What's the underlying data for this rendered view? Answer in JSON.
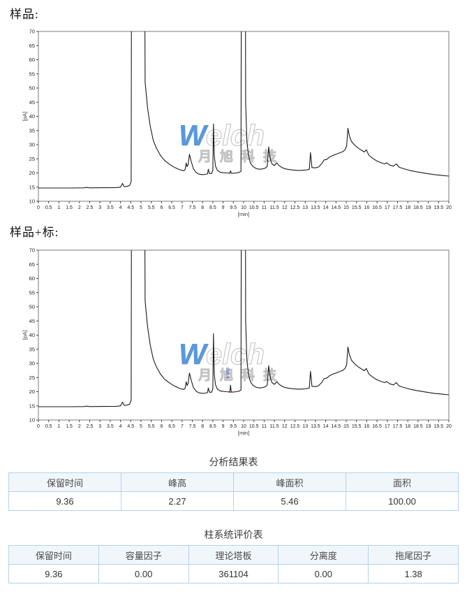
{
  "page": {
    "section1_label": "样品:",
    "section2_label": "样品+标:"
  },
  "watermark": {
    "word_head": "W",
    "word_tail": "elch",
    "sub": "月旭科技",
    "head_color": "#4a8fd4",
    "outline_color": "#bdbdbd"
  },
  "tables": [
    {
      "title": "分析结果表",
      "headers": [
        "保留时间",
        "峰高",
        "峰面积",
        "面积"
      ],
      "rows": [
        [
          "9.36",
          "2.27",
          "5.46",
          "100.00"
        ]
      ]
    },
    {
      "title": "柱系统评价表",
      "headers": [
        "保留时间",
        "容量因子",
        "理论塔板",
        "分离度",
        "拖尾因子"
      ],
      "rows": [
        [
          "9.36",
          "0.00",
          "361104",
          "0.00",
          "1.38"
        ]
      ]
    }
  ],
  "chart_data": [
    {
      "type": "line",
      "name": "sample-chromatogram",
      "title": "样品:",
      "xlabel": "[min]",
      "ylabel": "[pA]",
      "xlim": [
        0,
        20
      ],
      "ylim": [
        10,
        70
      ],
      "grid": false,
      "line_color": "#1a1a1a",
      "x_ticks": [
        "0",
        "0.5",
        "1",
        "1.5",
        "2",
        "2.5",
        "3",
        "3.5",
        "4",
        "4.5",
        "5",
        "5.5",
        "6",
        "6.5",
        "7",
        "7.5",
        "8",
        "8.5",
        "9",
        "9.5",
        "10",
        "10.5",
        "11",
        "11.5",
        "12",
        "12.5",
        "13",
        "13.5",
        "14",
        "14.5",
        "15",
        "15.5",
        "16",
        "16.5",
        "17",
        "17.5",
        "18",
        "18.5",
        "19",
        "19.5",
        "20"
      ],
      "y_ticks": [
        "70",
        "65",
        "60",
        "55",
        "50",
        "45",
        "40",
        "35",
        "30",
        "25",
        "20",
        "15",
        "10"
      ],
      "points": [
        [
          0,
          14.7
        ],
        [
          0.8,
          14.7
        ],
        [
          1.6,
          14.7
        ],
        [
          2.2,
          14.75
        ],
        [
          2.35,
          14.9
        ],
        [
          2.5,
          14.75
        ],
        [
          3.2,
          14.8
        ],
        [
          3.8,
          14.85
        ],
        [
          4.0,
          15.0
        ],
        [
          4.1,
          16.3
        ],
        [
          4.18,
          15.2
        ],
        [
          4.3,
          15.2
        ],
        [
          4.45,
          15.6
        ],
        [
          4.52,
          17
        ],
        [
          4.56,
          200
        ],
        [
          5.12,
          200
        ],
        [
          5.2,
          52
        ],
        [
          5.32,
          43
        ],
        [
          5.45,
          36.5
        ],
        [
          5.6,
          31.5
        ],
        [
          5.75,
          28.8
        ],
        [
          5.95,
          26.2
        ],
        [
          6.15,
          24.4
        ],
        [
          6.4,
          23.0
        ],
        [
          6.65,
          21.9
        ],
        [
          6.9,
          21.1
        ],
        [
          7.08,
          20.8
        ],
        [
          7.15,
          21.2
        ],
        [
          7.2,
          23.5
        ],
        [
          7.25,
          22.2
        ],
        [
          7.3,
          23.0
        ],
        [
          7.36,
          26.6
        ],
        [
          7.44,
          24.3
        ],
        [
          7.55,
          21.5
        ],
        [
          7.68,
          20.2
        ],
        [
          7.82,
          19.6
        ],
        [
          8.0,
          19.4
        ],
        [
          8.15,
          19.5
        ],
        [
          8.24,
          19.7
        ],
        [
          8.28,
          21.3
        ],
        [
          8.34,
          19.8
        ],
        [
          8.44,
          19.8
        ],
        [
          8.5,
          21
        ],
        [
          8.53,
          37.3
        ],
        [
          8.57,
          26
        ],
        [
          8.63,
          22.5
        ],
        [
          8.72,
          20.9
        ],
        [
          8.85,
          20.3
        ],
        [
          9.0,
          20.1
        ],
        [
          9.15,
          20.0
        ],
        [
          9.28,
          19.95
        ],
        [
          9.33,
          19.9
        ],
        [
          9.36,
          20.8
        ],
        [
          9.4,
          19.9
        ],
        [
          9.5,
          19.9
        ],
        [
          9.65,
          20.0
        ],
        [
          9.78,
          20.2
        ],
        [
          9.87,
          20.6
        ],
        [
          9.92,
          200
        ],
        [
          10.06,
          200
        ],
        [
          10.1,
          45
        ],
        [
          10.16,
          31
        ],
        [
          10.24,
          26
        ],
        [
          10.33,
          23.5
        ],
        [
          10.45,
          22.3
        ],
        [
          10.6,
          21.6
        ],
        [
          10.75,
          21.3
        ],
        [
          10.9,
          21.4
        ],
        [
          11.05,
          21.7
        ],
        [
          11.15,
          22.3
        ],
        [
          11.22,
          29.2
        ],
        [
          11.3,
          25
        ],
        [
          11.38,
          23.2
        ],
        [
          11.5,
          22.6
        ],
        [
          11.62,
          23.6
        ],
        [
          11.7,
          22.8
        ],
        [
          11.85,
          22.0
        ],
        [
          12.0,
          21.5
        ],
        [
          12.2,
          21.2
        ],
        [
          12.45,
          21.0
        ],
        [
          12.7,
          20.9
        ],
        [
          12.95,
          21.0
        ],
        [
          13.1,
          21.1
        ],
        [
          13.2,
          21.3
        ],
        [
          13.26,
          27.2
        ],
        [
          13.33,
          21.9
        ],
        [
          13.5,
          21.8
        ],
        [
          13.65,
          22.1
        ],
        [
          13.8,
          23.2
        ],
        [
          13.92,
          24.6
        ],
        [
          14.05,
          24.8
        ],
        [
          14.18,
          25.6
        ],
        [
          14.35,
          26.2
        ],
        [
          14.5,
          26.6
        ],
        [
          14.68,
          27.1
        ],
        [
          14.85,
          27.6
        ],
        [
          14.95,
          28.3
        ],
        [
          15.02,
          29.5
        ],
        [
          15.08,
          35.8
        ],
        [
          15.15,
          33.2
        ],
        [
          15.25,
          31.2
        ],
        [
          15.4,
          29.9
        ],
        [
          15.58,
          28.8
        ],
        [
          15.75,
          28.0
        ],
        [
          15.88,
          27.4
        ],
        [
          15.98,
          28.2
        ],
        [
          16.1,
          26.3
        ],
        [
          16.3,
          25.1
        ],
        [
          16.5,
          24.2
        ],
        [
          16.7,
          23.6
        ],
        [
          16.88,
          23.2
        ],
        [
          16.97,
          23.6
        ],
        [
          17.12,
          22.8
        ],
        [
          17.3,
          22.4
        ],
        [
          17.44,
          23.2
        ],
        [
          17.58,
          22.0
        ],
        [
          17.8,
          21.5
        ],
        [
          18.1,
          20.9
        ],
        [
          18.45,
          20.4
        ],
        [
          18.85,
          19.9
        ],
        [
          19.3,
          19.4
        ],
        [
          19.7,
          19.1
        ],
        [
          20,
          18.9
        ]
      ]
    },
    {
      "type": "line",
      "name": "sample-plus-standard-chromatogram",
      "title": "样品+标:",
      "xlabel": "[min]",
      "ylabel": "[pA]",
      "xlim": [
        0,
        20
      ],
      "ylim": [
        10,
        70
      ],
      "grid": false,
      "line_color": "#1a1a1a",
      "x_ticks": [
        "0",
        "0.5",
        "1",
        "1.5",
        "2",
        "2.5",
        "3",
        "3.5",
        "4",
        "4.5",
        "5",
        "5.5",
        "6",
        "6.5",
        "7",
        "7.5",
        "8",
        "8.5",
        "9",
        "9.5",
        "10",
        "10.5",
        "11",
        "11.5",
        "12",
        "12.5",
        "13",
        "13.5",
        "14",
        "14.5",
        "15",
        "15.5",
        "16",
        "16.5",
        "17",
        "17.5",
        "18",
        "18.5",
        "19",
        "19.5",
        "20"
      ],
      "y_ticks": [
        "70",
        "65",
        "60",
        "55",
        "50",
        "45",
        "40",
        "35",
        "30",
        "25",
        "20",
        "15",
        "10"
      ],
      "peak_label": {
        "text": "9.363",
        "x": 9.3,
        "y": 24.5,
        "color": "#4343c8"
      },
      "baseline_marker": {
        "x1": 9.26,
        "x2": 9.48,
        "y": 19.8,
        "color": "#b5502d"
      },
      "points": [
        [
          0,
          14.7
        ],
        [
          0.8,
          14.7
        ],
        [
          1.6,
          14.7
        ],
        [
          2.2,
          14.75
        ],
        [
          2.35,
          14.9
        ],
        [
          2.5,
          14.75
        ],
        [
          3.2,
          14.8
        ],
        [
          3.8,
          14.85
        ],
        [
          4.0,
          15.0
        ],
        [
          4.1,
          16.3
        ],
        [
          4.18,
          15.2
        ],
        [
          4.3,
          15.2
        ],
        [
          4.45,
          15.6
        ],
        [
          4.52,
          17
        ],
        [
          4.56,
          200
        ],
        [
          5.12,
          200
        ],
        [
          5.2,
          52
        ],
        [
          5.32,
          43
        ],
        [
          5.45,
          36.5
        ],
        [
          5.6,
          31.5
        ],
        [
          5.75,
          28.8
        ],
        [
          5.95,
          26.2
        ],
        [
          6.15,
          24.4
        ],
        [
          6.4,
          23.0
        ],
        [
          6.65,
          21.9
        ],
        [
          6.9,
          21.1
        ],
        [
          7.08,
          20.8
        ],
        [
          7.15,
          21.2
        ],
        [
          7.2,
          23.5
        ],
        [
          7.25,
          22.2
        ],
        [
          7.3,
          23.0
        ],
        [
          7.36,
          26.6
        ],
        [
          7.44,
          24.3
        ],
        [
          7.55,
          21.5
        ],
        [
          7.68,
          20.2
        ],
        [
          7.82,
          19.6
        ],
        [
          8.0,
          19.4
        ],
        [
          8.15,
          19.5
        ],
        [
          8.24,
          19.7
        ],
        [
          8.28,
          21.3
        ],
        [
          8.34,
          19.8
        ],
        [
          8.44,
          19.8
        ],
        [
          8.5,
          21
        ],
        [
          8.53,
          40.5
        ],
        [
          8.57,
          26
        ],
        [
          8.63,
          22.5
        ],
        [
          8.72,
          20.9
        ],
        [
          8.85,
          20.3
        ],
        [
          9.0,
          20.1
        ],
        [
          9.15,
          20.0
        ],
        [
          9.28,
          19.95
        ],
        [
          9.33,
          19.9
        ],
        [
          9.36,
          22.3
        ],
        [
          9.4,
          19.9
        ],
        [
          9.5,
          19.9
        ],
        [
          9.65,
          20.0
        ],
        [
          9.78,
          20.2
        ],
        [
          9.87,
          20.6
        ],
        [
          9.92,
          200
        ],
        [
          10.06,
          200
        ],
        [
          10.1,
          45
        ],
        [
          10.16,
          31
        ],
        [
          10.24,
          26
        ],
        [
          10.33,
          23.5
        ],
        [
          10.45,
          22.3
        ],
        [
          10.6,
          21.6
        ],
        [
          10.75,
          21.3
        ],
        [
          10.9,
          21.4
        ],
        [
          11.05,
          21.7
        ],
        [
          11.15,
          22.3
        ],
        [
          11.22,
          29.2
        ],
        [
          11.3,
          25
        ],
        [
          11.38,
          23.2
        ],
        [
          11.5,
          22.6
        ],
        [
          11.62,
          23.6
        ],
        [
          11.7,
          22.8
        ],
        [
          11.85,
          22.0
        ],
        [
          12.0,
          21.5
        ],
        [
          12.2,
          21.2
        ],
        [
          12.45,
          21.0
        ],
        [
          12.7,
          20.9
        ],
        [
          12.95,
          21.0
        ],
        [
          13.1,
          21.1
        ],
        [
          13.2,
          21.3
        ],
        [
          13.26,
          27.2
        ],
        [
          13.33,
          21.9
        ],
        [
          13.5,
          21.8
        ],
        [
          13.65,
          22.1
        ],
        [
          13.8,
          23.2
        ],
        [
          13.92,
          24.6
        ],
        [
          14.05,
          24.8
        ],
        [
          14.18,
          25.6
        ],
        [
          14.35,
          26.2
        ],
        [
          14.5,
          26.6
        ],
        [
          14.68,
          27.1
        ],
        [
          14.85,
          27.6
        ],
        [
          14.95,
          28.3
        ],
        [
          15.02,
          29.5
        ],
        [
          15.08,
          35.8
        ],
        [
          15.15,
          33.2
        ],
        [
          15.25,
          31.2
        ],
        [
          15.4,
          29.9
        ],
        [
          15.58,
          28.8
        ],
        [
          15.75,
          28.0
        ],
        [
          15.88,
          27.4
        ],
        [
          15.98,
          28.2
        ],
        [
          16.1,
          26.3
        ],
        [
          16.3,
          25.1
        ],
        [
          16.5,
          24.2
        ],
        [
          16.7,
          23.6
        ],
        [
          16.88,
          23.2
        ],
        [
          16.97,
          23.6
        ],
        [
          17.12,
          22.8
        ],
        [
          17.3,
          22.4
        ],
        [
          17.44,
          23.2
        ],
        [
          17.58,
          22.0
        ],
        [
          17.8,
          21.5
        ],
        [
          18.1,
          20.9
        ],
        [
          18.45,
          20.4
        ],
        [
          18.85,
          19.9
        ],
        [
          19.3,
          19.4
        ],
        [
          19.7,
          19.1
        ],
        [
          20,
          18.9
        ]
      ]
    }
  ]
}
